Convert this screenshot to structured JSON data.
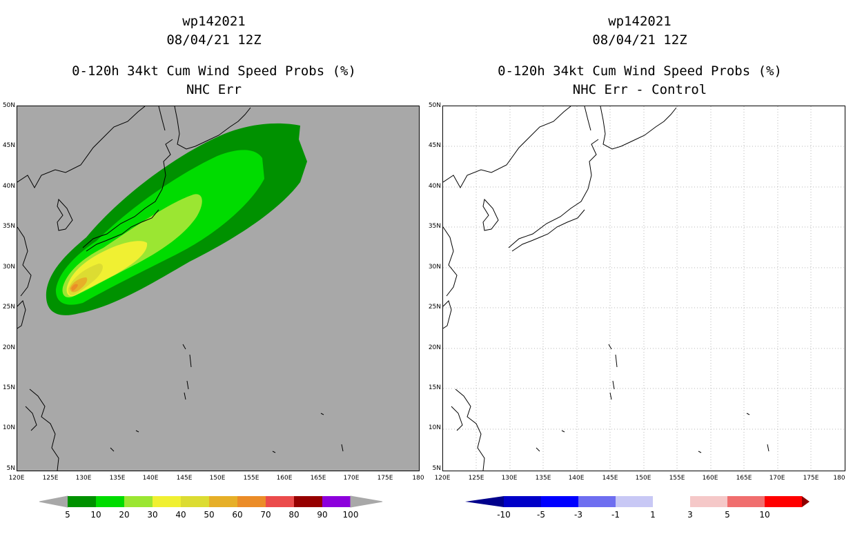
{
  "left_panel": {
    "title_line1": "wp142021",
    "title_line2": "08/04/21 12Z",
    "title_line3": "0-120h 34kt Cum Wind Speed Probs (%)",
    "title_line4": "NHC Err",
    "background_color": "#a8a8a8",
    "colorbar": {
      "labels": [
        "5",
        "10",
        "20",
        "30",
        "40",
        "50",
        "60",
        "70",
        "80",
        "90",
        "100"
      ],
      "colors": [
        "#009100",
        "#00dc00",
        "#9be632",
        "#f0f032",
        "#dcdc32",
        "#e6af28",
        "#eb8c28",
        "#eb4b4b",
        "#960000",
        "#8c00dc"
      ],
      "end_color": "#a8a8a8"
    }
  },
  "right_panel": {
    "title_line1": "wp142021",
    "title_line2": "08/04/21 12Z",
    "title_line3": "0-120h 34kt Cum Wind Speed Probs (%)",
    "title_line4": "NHC Err - Control",
    "background_color": "#ffffff",
    "colorbar": {
      "labels": [
        "-10",
        "-5",
        "-3",
        "-1",
        "1",
        "3",
        "5",
        "10"
      ],
      "colors": [
        "#0000c8",
        "#0000ff",
        "#6e6ef0",
        "#c8c8f5",
        "#ffffff",
        "#f5c8c8",
        "#f06e6e",
        "#ff0000"
      ],
      "low_color": "#00008c",
      "high_color": "#8c0000"
    }
  },
  "axes": {
    "lat_labels": [
      "50N",
      "45N",
      "40N",
      "35N",
      "30N",
      "25N",
      "20N",
      "15N",
      "10N",
      "5N"
    ],
    "lon_labels": [
      "120E",
      "125E",
      "130E",
      "135E",
      "140E",
      "145E",
      "150E",
      "155E",
      "160E",
      "165E",
      "170E",
      "175E",
      "180"
    ]
  },
  "icons": {
    "coastline": "coastline-outline",
    "grid": "dotted-gridlines"
  }
}
